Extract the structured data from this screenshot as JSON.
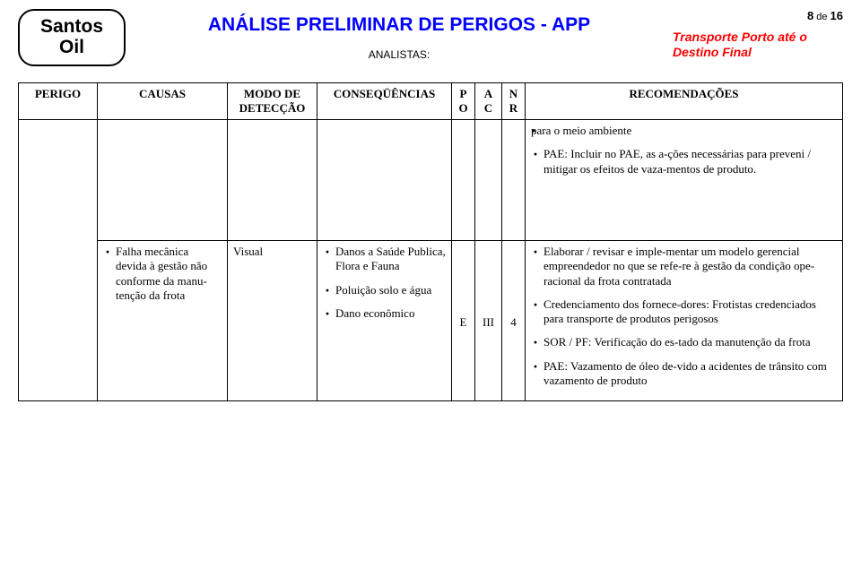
{
  "header": {
    "logo_line1": "Santos",
    "logo_line2": "Oil",
    "title": "ANÁLISE PRELIMINAR DE PERIGOS - APP",
    "subtitle": "ANALISTAS:",
    "page_label_prefix": "8",
    "page_label_mid": " de ",
    "page_label_suffix": "16",
    "scope": "Transporte Porto até o Destino Final"
  },
  "columns": {
    "perigo": "PERIGO",
    "causas": "CAUSAS",
    "modo": "MODO DE DETECÇÃO",
    "conseq": "CONSEQÜÊNCIAS",
    "po_1": "P",
    "po_2": "O",
    "ac_1": "A",
    "ac_2": "C",
    "nr_1": "N",
    "nr_2": "R",
    "recom": "RECOMENDAÇÕES"
  },
  "rows": {
    "r1": {
      "recom": [
        "para o meio ambiente",
        "PAE: Incluir no PAE, as a-ções necessárias para preveni / mitigar os efeitos de vaza-mentos de produto."
      ]
    },
    "r2": {
      "causas": "Falha mecânica devida à gestão não conforme da manu-tenção da frota",
      "modo": "Visual",
      "conseq": [
        "Danos a Saúde Publica, Flora e Fauna",
        "Poluição solo e água",
        "Dano econômico"
      ],
      "po": "E",
      "ac": "III",
      "nr": "4",
      "recom": [
        "Elaborar / revisar e imple-mentar um modelo gerencial empreendedor no que se refe-re à gestão da condição ope-racional da frota contratada",
        "Credenciamento dos fornece-dores: Frotistas credenciados para transporte de produtos perigosos",
        "SOR / PF: Verificação do es-tado da manutenção da frota",
        "PAE: Vazamento de óleo de-vido a acidentes de trânsito com vazamento de produto"
      ]
    }
  }
}
